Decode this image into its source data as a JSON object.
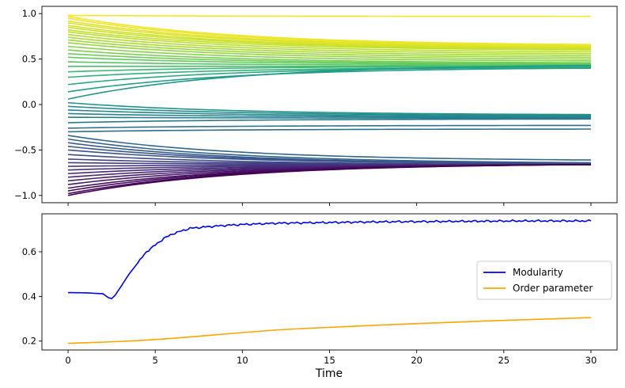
{
  "chart_data": [
    {
      "type": "line",
      "panel": "top",
      "description_series": "many trajectories colored by viridis colormap according to initial value",
      "colormap": "viridis",
      "xlim": [
        -1.5,
        31.5
      ],
      "ylim": [
        -1.08,
        1.08
      ],
      "xticks": [
        0,
        5,
        10,
        15,
        20,
        25,
        30
      ],
      "xtick_labels_visible": false,
      "yticks": [
        -1.0,
        -0.5,
        0.0,
        0.5,
        1.0
      ],
      "ytick_labels": [
        "−1.0",
        "−0.5",
        "0.0",
        "0.5",
        "1.0"
      ],
      "x": [
        0,
        30
      ],
      "trajectories": [
        {
          "start": 0.98,
          "end": 0.97
        },
        {
          "start": 0.97,
          "end": 0.66
        },
        {
          "start": 0.95,
          "end": 0.65
        },
        {
          "start": 0.92,
          "end": 0.64
        },
        {
          "start": 0.9,
          "end": 0.63
        },
        {
          "start": 0.87,
          "end": 0.62
        },
        {
          "start": 0.85,
          "end": 0.61
        },
        {
          "start": 0.82,
          "end": 0.6
        },
        {
          "start": 0.8,
          "end": 0.58
        },
        {
          "start": 0.77,
          "end": 0.56
        },
        {
          "start": 0.74,
          "end": 0.54
        },
        {
          "start": 0.71,
          "end": 0.52
        },
        {
          "start": 0.68,
          "end": 0.5
        },
        {
          "start": 0.64,
          "end": 0.48
        },
        {
          "start": 0.6,
          "end": 0.46
        },
        {
          "start": 0.56,
          "end": 0.45
        },
        {
          "start": 0.52,
          "end": 0.44
        },
        {
          "start": 0.47,
          "end": 0.43
        },
        {
          "start": 0.42,
          "end": 0.42
        },
        {
          "start": 0.36,
          "end": 0.42
        },
        {
          "start": 0.3,
          "end": 0.41
        },
        {
          "start": 0.22,
          "end": 0.41
        },
        {
          "start": 0.14,
          "end": 0.4
        },
        {
          "start": 0.06,
          "end": 0.43
        },
        {
          "start": 0.02,
          "end": -0.11
        },
        {
          "start": -0.02,
          "end": -0.12
        },
        {
          "start": -0.06,
          "end": -0.13
        },
        {
          "start": -0.1,
          "end": -0.14
        },
        {
          "start": -0.14,
          "end": -0.15
        },
        {
          "start": -0.2,
          "end": -0.16
        },
        {
          "start": -0.26,
          "end": -0.23
        },
        {
          "start": -0.3,
          "end": -0.27
        },
        {
          "start": -0.34,
          "end": -0.61
        },
        {
          "start": -0.38,
          "end": -0.64
        },
        {
          "start": -0.42,
          "end": -0.65
        },
        {
          "start": -0.46,
          "end": -0.65
        },
        {
          "start": -0.5,
          "end": -0.65
        },
        {
          "start": -0.55,
          "end": -0.66
        },
        {
          "start": -0.6,
          "end": -0.66
        },
        {
          "start": -0.64,
          "end": -0.66
        },
        {
          "start": -0.68,
          "end": -0.66
        },
        {
          "start": -0.72,
          "end": -0.66
        },
        {
          "start": -0.76,
          "end": -0.66
        },
        {
          "start": -0.8,
          "end": -0.66
        },
        {
          "start": -0.84,
          "end": -0.66
        },
        {
          "start": -0.88,
          "end": -0.66
        },
        {
          "start": -0.92,
          "end": -0.66
        },
        {
          "start": -0.95,
          "end": -0.66
        },
        {
          "start": -0.98,
          "end": -0.66
        },
        {
          "start": -1.0,
          "end": -0.66
        }
      ]
    },
    {
      "type": "line",
      "panel": "bottom",
      "xlabel": "Time",
      "xlim": [
        -1.5,
        31.5
      ],
      "ylim": [
        0.16,
        0.77
      ],
      "xticks": [
        0,
        5,
        10,
        15,
        20,
        25,
        30
      ],
      "xtick_labels": [
        "0",
        "5",
        "10",
        "15",
        "20",
        "25",
        "30"
      ],
      "yticks": [
        0.2,
        0.4,
        0.6
      ],
      "ytick_labels": [
        "0.2",
        "0.4",
        "0.6"
      ],
      "legend_position": "center-right",
      "series": [
        {
          "name": "Modularity",
          "color": "#0000ff",
          "x": [
            0,
            1,
            2,
            2.3,
            2.5,
            2.7,
            3,
            3.5,
            4,
            4.5,
            5,
            5.5,
            6,
            6.5,
            7,
            8,
            9,
            10,
            12,
            14,
            16,
            18,
            20,
            22,
            24,
            26,
            28,
            30
          ],
          "values": [
            0.417,
            0.416,
            0.412,
            0.395,
            0.39,
            0.405,
            0.44,
            0.5,
            0.55,
            0.6,
            0.63,
            0.66,
            0.68,
            0.693,
            0.705,
            0.712,
            0.718,
            0.722,
            0.728,
            0.73,
            0.732,
            0.734,
            0.735,
            0.736,
            0.737,
            0.738,
            0.738,
            0.738
          ]
        },
        {
          "name": "Order parameter",
          "color": "#ffa500",
          "x": [
            0,
            2,
            4,
            6,
            8,
            10,
            12,
            14,
            16,
            18,
            20,
            22,
            24,
            26,
            28,
            30
          ],
          "values": [
            0.19,
            0.195,
            0.202,
            0.212,
            0.225,
            0.238,
            0.25,
            0.258,
            0.265,
            0.272,
            0.278,
            0.284,
            0.29,
            0.295,
            0.3,
            0.305
          ]
        }
      ]
    }
  ]
}
